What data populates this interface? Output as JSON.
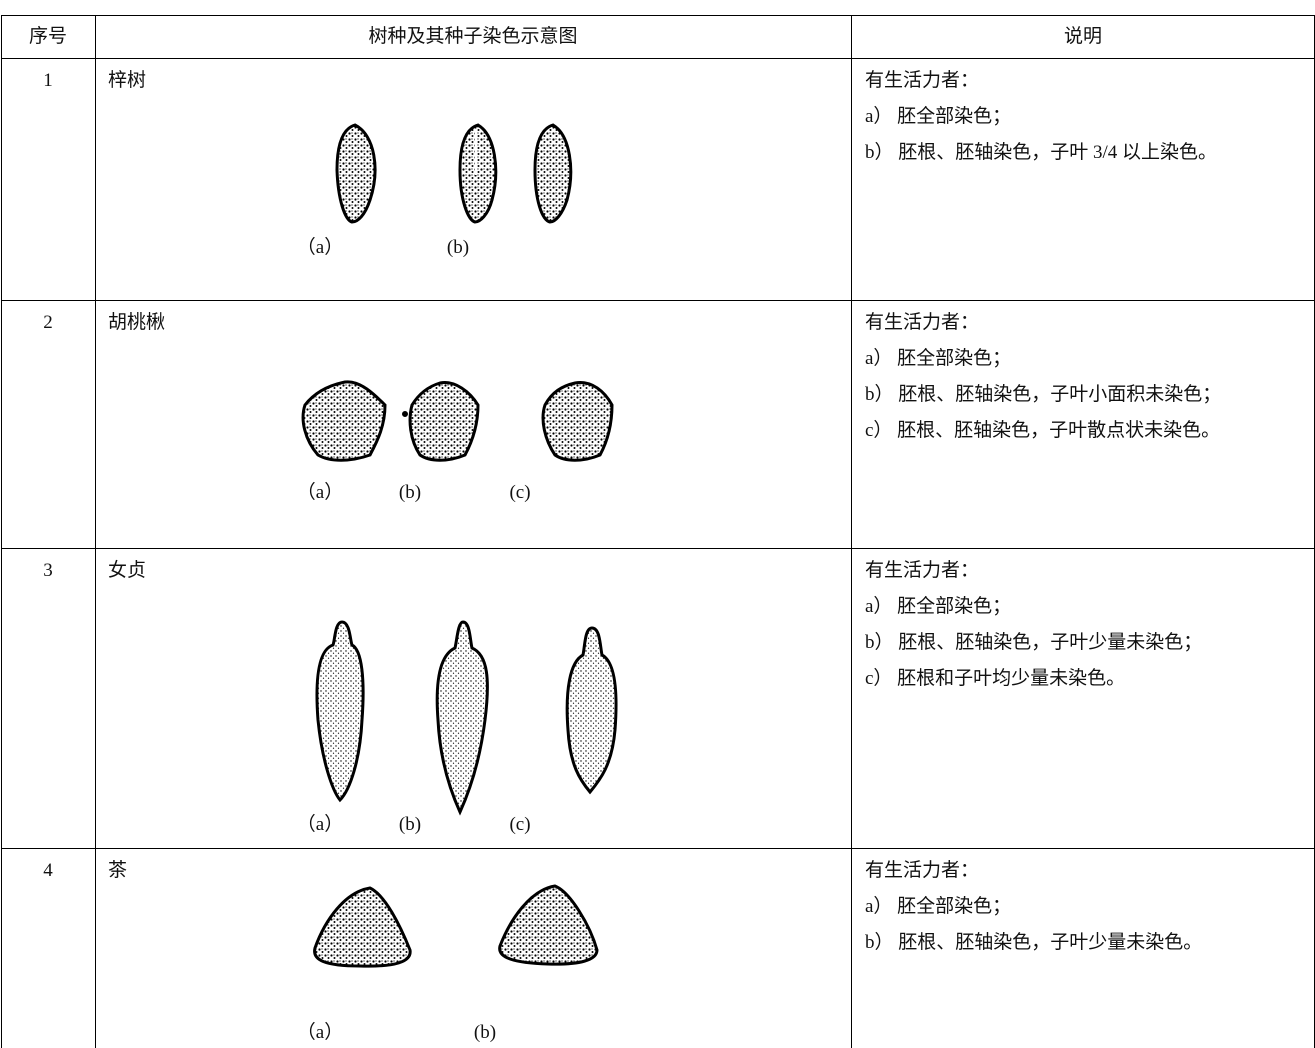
{
  "header": [
    "序号",
    "树种及其种子染色示意图",
    "说明"
  ],
  "rows": [
    {
      "number": "1",
      "name": "梓树",
      "figure_labels": [
        "（a）",
        "(b)"
      ],
      "notes": [
        "有生活力者：",
        "a） 胚全部染色；",
        "b） 胚根、胚轴染色，子叶 3/4 以上染色。"
      ]
    },
    {
      "number": "2",
      "name": "胡桃楸",
      "figure_labels": [
        "（a）",
        "(b)",
        "(c)"
      ],
      "notes": [
        "有生活力者：",
        "a） 胚全部染色；",
        "b） 胚根、胚轴染色，子叶小面积未染色；",
        "c） 胚根、胚轴染色，子叶散点状未染色。"
      ]
    },
    {
      "number": "3",
      "name": "女贞",
      "figure_labels": [
        "（a）",
        "(b)",
        "(c)"
      ],
      "notes": [
        "有生活力者：",
        "a） 胚全部染色；",
        "b） 胚根、胚轴染色，子叶少量未染色；",
        "c） 胚根和子叶均少量未染色。"
      ]
    },
    {
      "number": "4",
      "name": "茶",
      "figure_labels": [
        "（a）",
        "(b)"
      ],
      "notes": [
        "有生活力者：",
        "a） 胚全部染色；",
        "b） 胚根、胚轴染色，子叶少量未染色。"
      ]
    }
  ]
}
